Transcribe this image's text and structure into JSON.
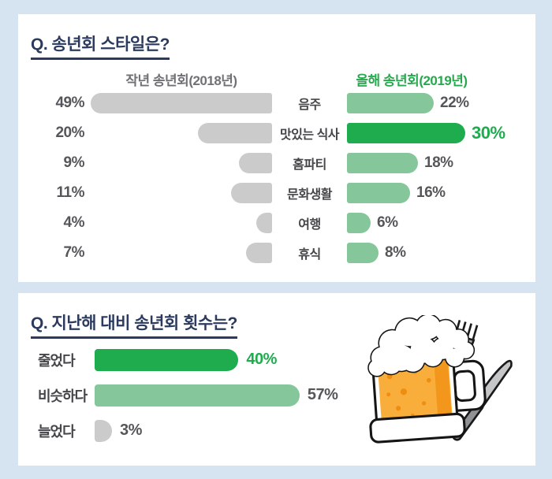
{
  "page": {
    "background": "#D6E4F2",
    "card_background": "#FFFFFF"
  },
  "colors": {
    "title_navy": "#2B3A5E",
    "bar_gray": "#CBCBCB",
    "bar_light_green": "#85C79A",
    "bar_bright_green": "#1EAC4E",
    "value_text": "#55565A",
    "category_text": "#454649",
    "header_gray": "#707174",
    "header_green": "#28A84E"
  },
  "illustration": {
    "name": "beer-mug-with-fork-and-knife-icon"
  },
  "chart_data": [
    {
      "type": "bar",
      "orientation": "horizontal",
      "title": "Q. 송년회 스타일은?",
      "categories": [
        "음주",
        "맛있는 식사",
        "홈파티",
        "문화생활",
        "여행",
        "휴식"
      ],
      "series": [
        {
          "name": "작년 송년회(2018년)",
          "values": [
            49,
            20,
            9,
            11,
            4,
            7
          ],
          "color": "#CBCBCB",
          "side": "left"
        },
        {
          "name": "올해 송년회(2019년)",
          "values": [
            22,
            30,
            18,
            16,
            6,
            8
          ],
          "color": "#85C79A",
          "side": "right"
        }
      ],
      "highlight_category": "맛있는 식사",
      "highlight_series": "올해 송년회(2019년)",
      "highlight_color": "#1EAC4E",
      "value_suffix": "%",
      "xlim": [
        0,
        49
      ],
      "grid": false,
      "legend_position": "top"
    },
    {
      "type": "bar",
      "orientation": "horizontal",
      "title": "Q. 지난해 대비 송년회 횟수는?",
      "categories": [
        "줄었다",
        "비슷하다",
        "늘었다"
      ],
      "values": [
        40,
        57,
        3
      ],
      "bar_styles": [
        "bright",
        "light",
        "gray"
      ],
      "bar_colors": [
        "#1EAC4E",
        "#85C79A",
        "#CBCBCB"
      ],
      "value_suffix": "%",
      "xlim": [
        0,
        57
      ],
      "grid": false
    }
  ]
}
